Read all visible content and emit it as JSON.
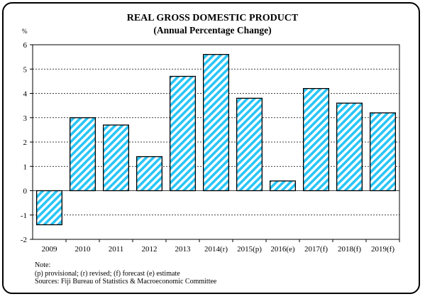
{
  "chart_data": {
    "type": "bar",
    "title": "REAL GROSS DOMESTIC PRODUCT",
    "subtitle": "(Annual Percentage Change)",
    "ylabel": "%",
    "xlabel": "",
    "categories": [
      "2009",
      "2010",
      "2011",
      "2012",
      "2013",
      "2014(r)",
      "2015(p)",
      "2016(e)",
      "2017(f)",
      "2018(f)",
      "2019(f)"
    ],
    "values": [
      -1.4,
      3.0,
      2.7,
      1.4,
      4.7,
      5.6,
      3.8,
      0.4,
      4.2,
      3.6,
      3.2
    ],
    "ylim": [
      -2,
      6
    ],
    "yticks": [
      -2,
      -1,
      0,
      1,
      2,
      3,
      4,
      5,
      6
    ],
    "grid": true,
    "grid_style": "dashed",
    "bar_pattern": "diagonal-stripes",
    "bar_color": "#29c5f6",
    "legend": "none"
  },
  "notes": {
    "heading": "Note:",
    "line1": " (p) provisional; (r) revised; (f) forecast (e) estimate",
    "line2": "Sources:  Fiji Bureau of Statistics & Macroeconomic Committee"
  }
}
